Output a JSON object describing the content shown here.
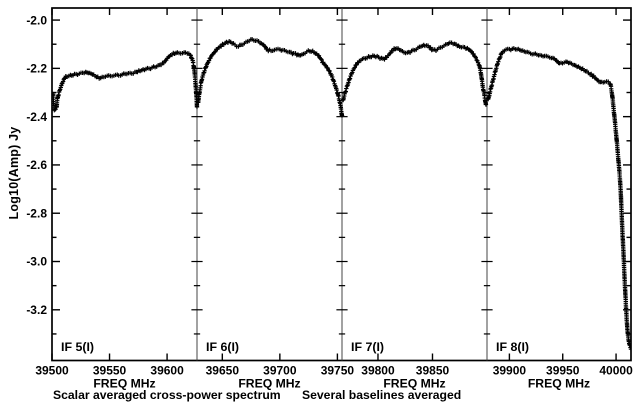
{
  "chart_data": {
    "type": "line",
    "marker": "plus",
    "title": "",
    "ylabel": "Log10(Amp) Jy",
    "xlabel_per_panel": "FREQ MHz",
    "caption": {
      "left": "Scalar averaged cross-power spectrum",
      "right": "Several baselines averaged"
    },
    "ylim": [
      -3.41,
      -1.95
    ],
    "ytick_major_step": 0.2,
    "ytick_minor_step": 0.1,
    "ytick_labels": [
      "-2.0",
      "-2.2",
      "-2.4",
      "-2.6",
      "-2.8",
      "-3.0",
      "-3.2"
    ],
    "grid": false,
    "colors": {
      "fg": "#000000",
      "bg": "#ffffff",
      "divider": "#444444"
    },
    "panels": [
      {
        "label": "IF 5(I)",
        "xlim": [
          39500,
          39626
        ],
        "xticks": [
          39500,
          39550,
          39600
        ],
        "points": [
          [
            39501,
            -2.31
          ],
          [
            39502,
            -2.37
          ],
          [
            39504,
            -2.36
          ],
          [
            39505,
            -2.32
          ],
          [
            39509,
            -2.26
          ],
          [
            39512,
            -2.235
          ],
          [
            39516,
            -2.23
          ],
          [
            39521,
            -2.225
          ],
          [
            39528,
            -2.217
          ],
          [
            39534,
            -2.222
          ],
          [
            39541,
            -2.239
          ],
          [
            39548,
            -2.232
          ],
          [
            39558,
            -2.227
          ],
          [
            39565,
            -2.222
          ],
          [
            39572,
            -2.217
          ],
          [
            39578,
            -2.207
          ],
          [
            39587,
            -2.197
          ],
          [
            39596,
            -2.18
          ],
          [
            39603,
            -2.145
          ],
          [
            39609,
            -2.136
          ],
          [
            39616,
            -2.136
          ],
          [
            39620,
            -2.145
          ],
          [
            39623,
            -2.185
          ],
          [
            39625,
            -2.28
          ],
          [
            39626,
            -2.36
          ]
        ]
      },
      {
        "label": "IF 6(I)",
        "xlim": [
          39628,
          39754
        ],
        "xticks": [
          39650,
          39700,
          39750
        ],
        "points": [
          [
            39629,
            -2.34
          ],
          [
            39632,
            -2.25
          ],
          [
            39637,
            -2.18
          ],
          [
            39642,
            -2.14
          ],
          [
            39648,
            -2.11
          ],
          [
            39656,
            -2.09
          ],
          [
            39664,
            -2.107
          ],
          [
            39676,
            -2.081
          ],
          [
            39686,
            -2.104
          ],
          [
            39690,
            -2.125
          ],
          [
            39700,
            -2.122
          ],
          [
            39712,
            -2.139
          ],
          [
            39718,
            -2.145
          ],
          [
            39726,
            -2.128
          ],
          [
            39733,
            -2.145
          ],
          [
            39737,
            -2.173
          ],
          [
            39744,
            -2.22
          ],
          [
            39751,
            -2.317
          ],
          [
            39754,
            -2.396
          ]
        ]
      },
      {
        "label": "IF 7(I)",
        "xlim": [
          39767,
          39900
        ],
        "xticks": [
          39800,
          39850
        ],
        "points": [
          [
            39768,
            -2.33
          ],
          [
            39772,
            -2.27
          ],
          [
            39777,
            -2.21
          ],
          [
            39783,
            -2.17
          ],
          [
            39790,
            -2.155
          ],
          [
            39798,
            -2.15
          ],
          [
            39806,
            -2.16
          ],
          [
            39816,
            -2.118
          ],
          [
            39827,
            -2.135
          ],
          [
            39843,
            -2.104
          ],
          [
            39852,
            -2.125
          ],
          [
            39866,
            -2.095
          ],
          [
            39875,
            -2.11
          ],
          [
            39882,
            -2.118
          ],
          [
            39887,
            -2.139
          ],
          [
            39893,
            -2.19
          ],
          [
            39896,
            -2.27
          ],
          [
            39899,
            -2.35
          ]
        ]
      },
      {
        "label": "IF 8(I)",
        "xlim": [
          39879,
          40014
        ],
        "xticks": [
          39900,
          39950,
          40000
        ],
        "points": [
          [
            39880,
            -2.33
          ],
          [
            39884,
            -2.26
          ],
          [
            39889,
            -2.18
          ],
          [
            39894,
            -2.13
          ],
          [
            39900,
            -2.122
          ],
          [
            39907,
            -2.12
          ],
          [
            39914,
            -2.13
          ],
          [
            39923,
            -2.14
          ],
          [
            39933,
            -2.15
          ],
          [
            39942,
            -2.16
          ],
          [
            39947,
            -2.18
          ],
          [
            39953,
            -2.173
          ],
          [
            39961,
            -2.187
          ],
          [
            39970,
            -2.207
          ],
          [
            39979,
            -2.234
          ],
          [
            39984,
            -2.255
          ],
          [
            39988,
            -2.257
          ],
          [
            39994,
            -2.262
          ],
          [
            39996,
            -2.3
          ],
          [
            39998,
            -2.38
          ],
          [
            40000,
            -2.47
          ],
          [
            40002,
            -2.57
          ],
          [
            40004,
            -2.68
          ],
          [
            40005,
            -2.78
          ],
          [
            40006,
            -2.88
          ],
          [
            40007,
            -2.97
          ],
          [
            40008,
            -3.07
          ],
          [
            40009,
            -3.16
          ],
          [
            40010,
            -3.24
          ],
          [
            40011,
            -3.3
          ],
          [
            40012,
            -3.33
          ],
          [
            40013,
            -3.35
          ],
          [
            40014,
            -3.36
          ]
        ]
      }
    ]
  }
}
